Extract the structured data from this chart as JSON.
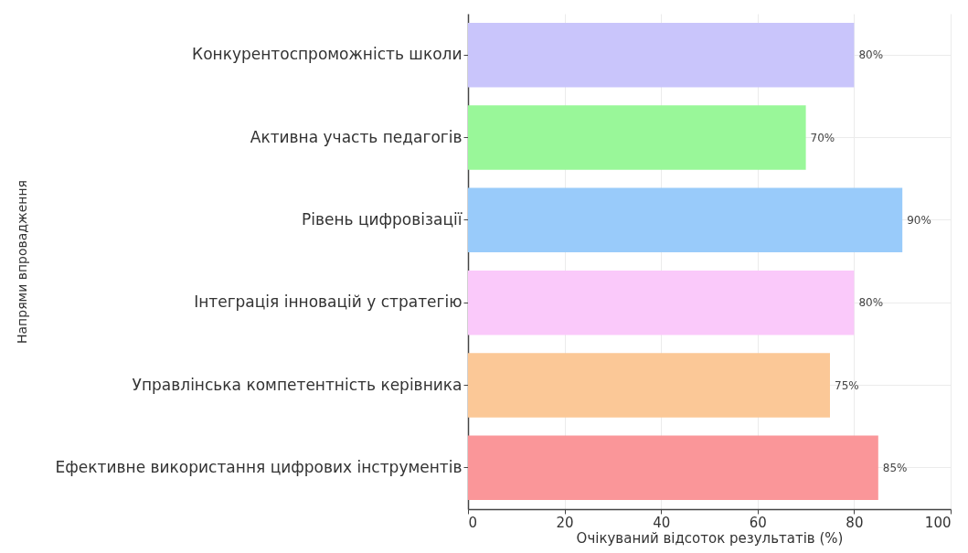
{
  "chart_data": {
    "type": "bar",
    "orientation": "horizontal",
    "xlabel": "Очікуваний відсоток результатів (%)",
    "ylabel": "Напрями впровадження",
    "categories": [
      "Конкурентоспроможність школи",
      "Активна участь педагогів",
      "Рівень цифровізації",
      "Інтеграція інновацій у стратегію",
      "Управлінська компетентність керівника",
      "Ефективне використання цифрових інструментів"
    ],
    "values": [
      80,
      70,
      90,
      80,
      75,
      85
    ],
    "value_labels": [
      "80%",
      "70%",
      "90%",
      "80%",
      "75%",
      "85%"
    ],
    "colors": [
      "#c9c5fb",
      "#99f799",
      "#99cbfa",
      "#fac9fa",
      "#fbc897",
      "#fa9699"
    ],
    "xlim": [
      0,
      100
    ],
    "xticks": [
      0,
      20,
      40,
      60,
      80,
      100
    ],
    "grid": true
  }
}
